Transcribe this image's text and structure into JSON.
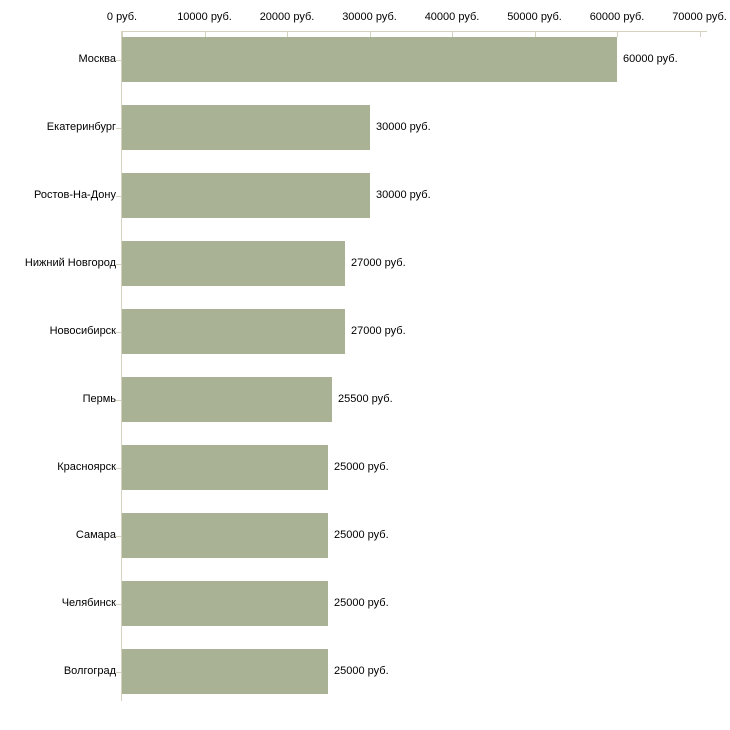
{
  "chart_data": {
    "type": "bar",
    "orientation": "horizontal",
    "title": "",
    "xlabel": "",
    "ylabel": "",
    "unit": "руб.",
    "categories": [
      "Москва",
      "Екатеринбург",
      "Ростов-На-Дону",
      "Нижний Новгород",
      "Новосибирск",
      "Пермь",
      "Красноярск",
      "Самара",
      "Челябинск",
      "Волгоград"
    ],
    "values": [
      60000,
      30000,
      30000,
      27000,
      27000,
      25500,
      25000,
      25000,
      25000,
      25000
    ],
    "value_labels": [
      "60000 руб.",
      "30000 руб.",
      "30000 руб.",
      "27000 руб.",
      "27000 руб.",
      "25500 руб.",
      "25000 руб.",
      "25000 руб.",
      "25000 руб.",
      "25000 руб."
    ],
    "x_ticks": [
      0,
      10000,
      20000,
      30000,
      40000,
      50000,
      60000,
      70000
    ],
    "x_tick_labels": [
      "0 руб.",
      "10000 руб.",
      "20000 руб.",
      "30000 руб.",
      "40000 руб.",
      "50000 руб.",
      "60000 руб.",
      "70000 руб."
    ],
    "xlim": [
      0,
      70000
    ],
    "grid": false,
    "legend": false,
    "bar_color": "#aab295",
    "axis_color": "#d6d2bd",
    "text_color": "#000000",
    "background_color": "#ffffff"
  }
}
